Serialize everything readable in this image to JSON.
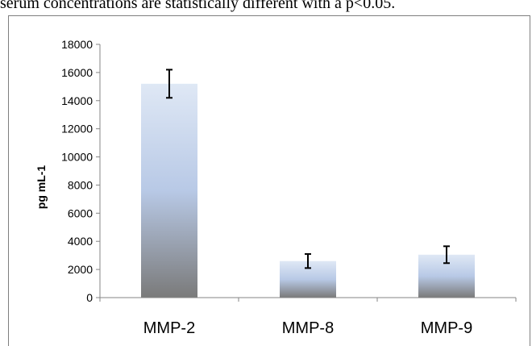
{
  "caption": "serum concentrations are statistically different with a p<0.05.",
  "chart_data": {
    "type": "bar",
    "title": "",
    "xlabel": "",
    "ylabel": "pg mL-1",
    "categories": [
      "MMP-2",
      "MMP-8",
      "MMP-9"
    ],
    "values": [
      15200,
      2600,
      3050
    ],
    "error": [
      1000,
      500,
      600
    ],
    "ylim": [
      0,
      18000
    ],
    "yticks": [
      0,
      2000,
      4000,
      6000,
      8000,
      10000,
      12000,
      14000,
      16000,
      18000
    ],
    "grid": false,
    "legend": "none",
    "bar_gradient": {
      "top": "#dfe8f5",
      "middle": "#b8c9e6",
      "bottom": "#7a7a7a"
    }
  }
}
